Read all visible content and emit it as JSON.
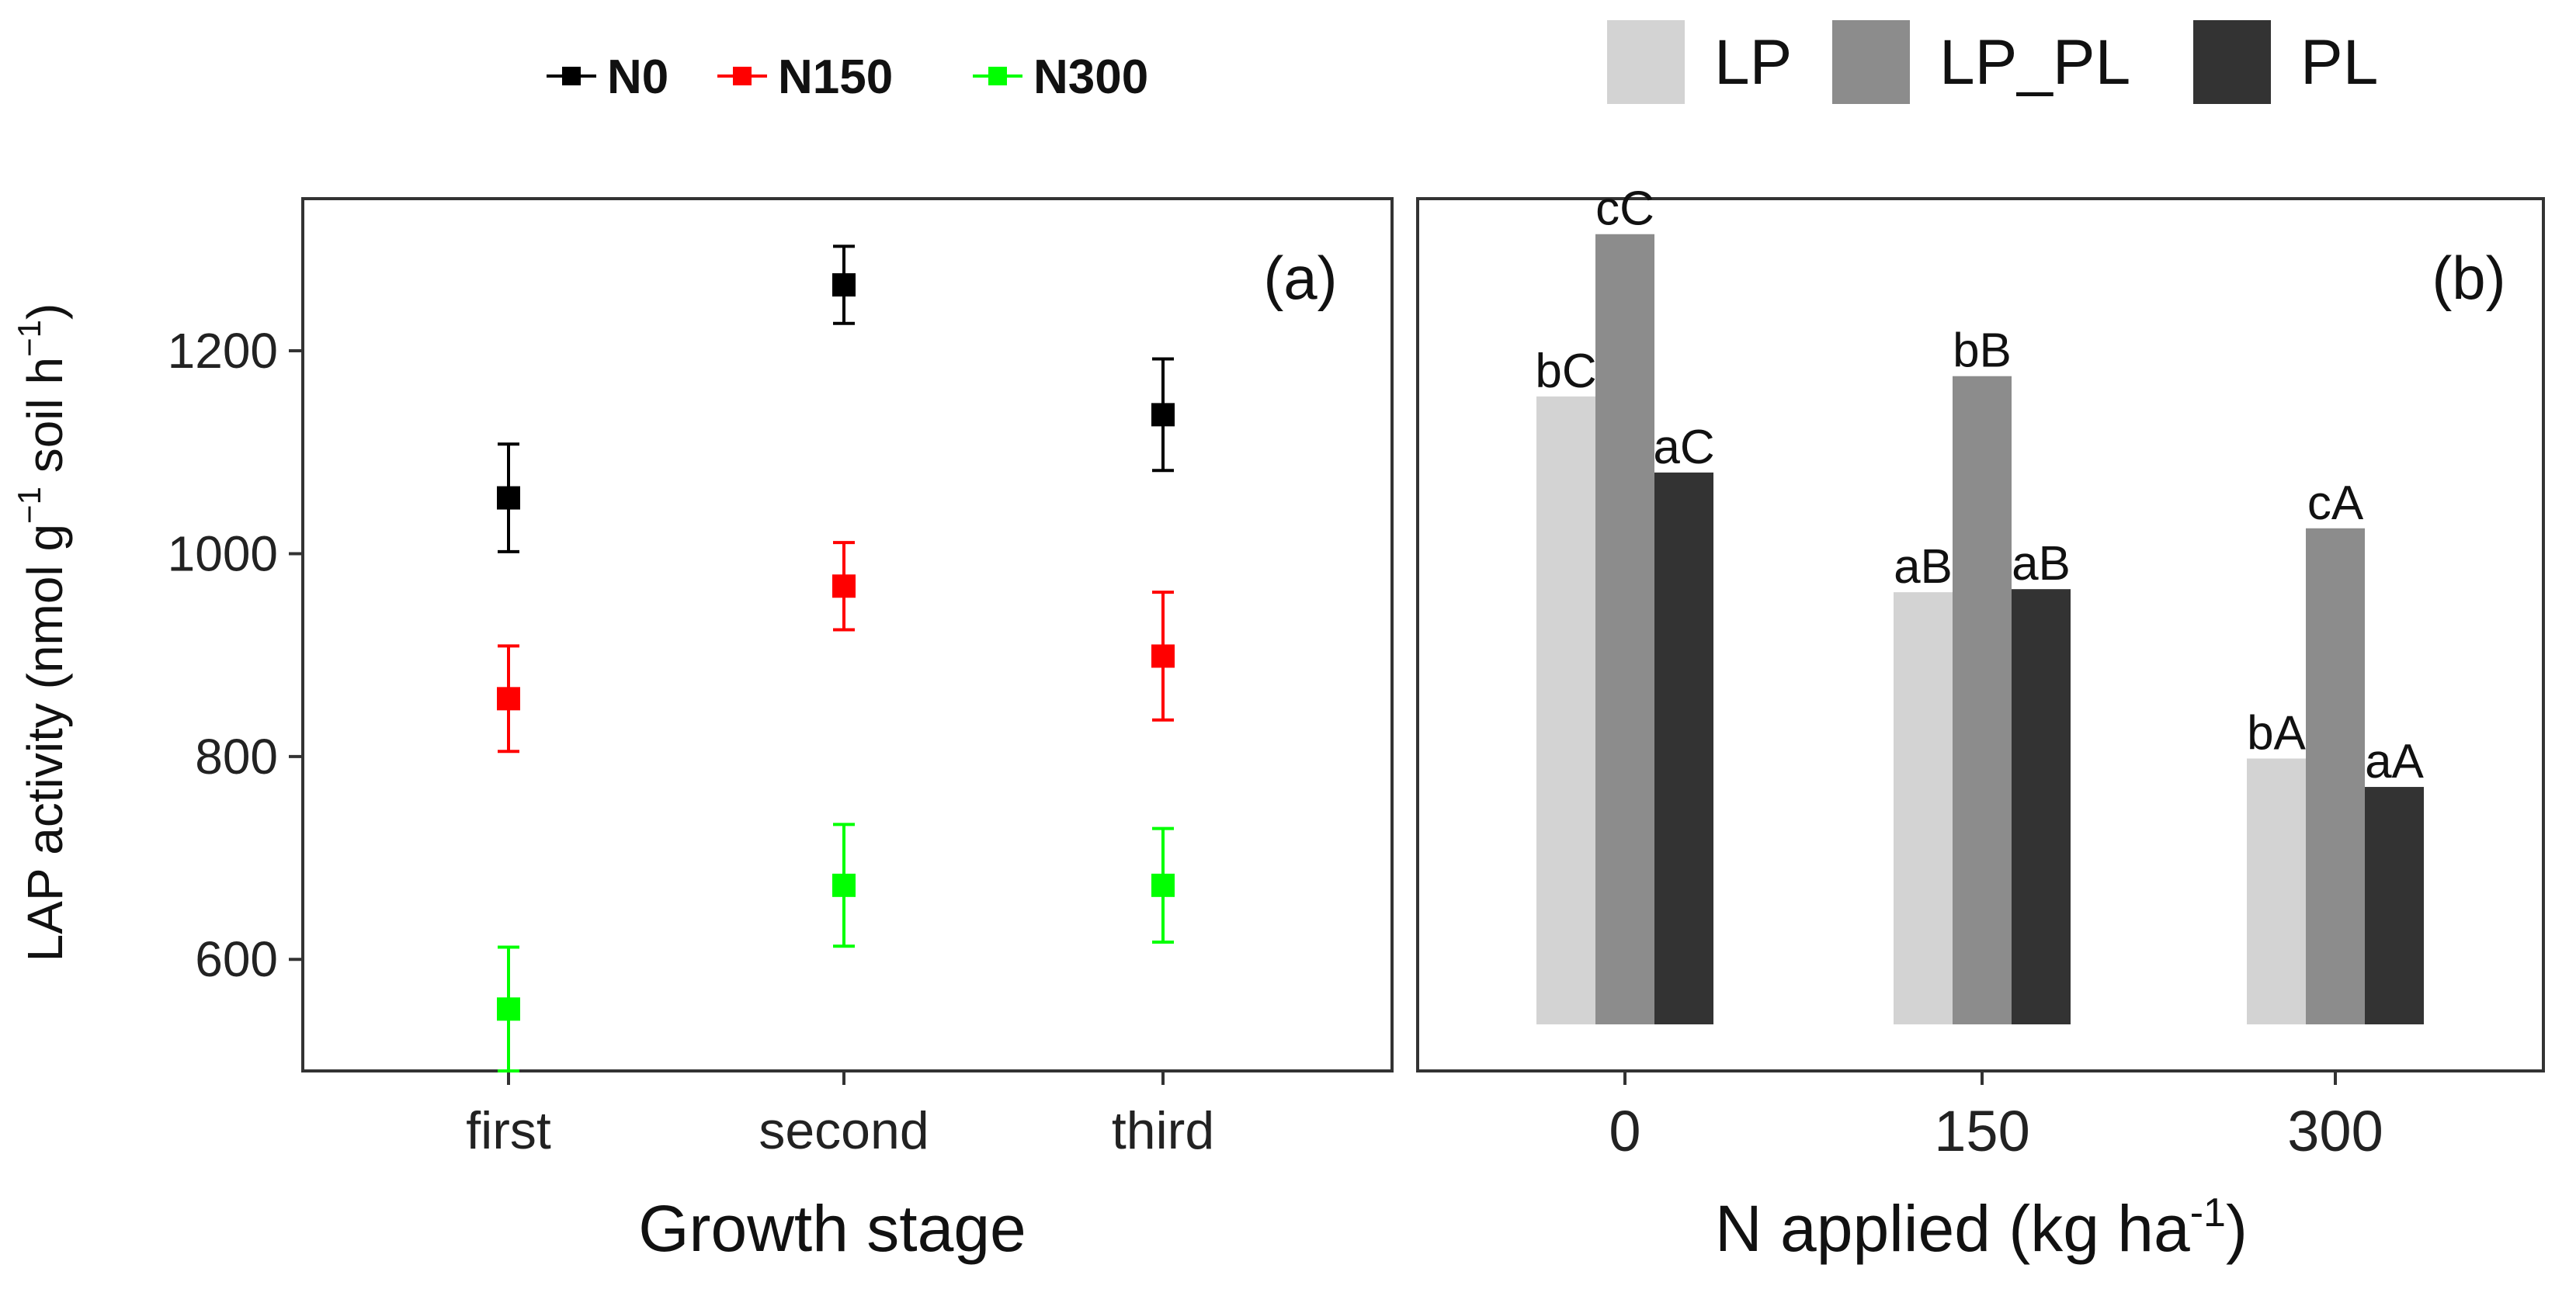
{
  "chart_data": [
    {
      "type": "scatter",
      "panel_label": "(a)",
      "xlabel": "Growth stage",
      "ylabel": "LAP activity (nmol g",
      "ylabel_sup1": "−1",
      "ylabel_mid": " soil h",
      "ylabel_sup2": "−1",
      "ylabel_end": ")",
      "categories": [
        "first",
        "second",
        "third"
      ],
      "ylim": [
        490,
        1350
      ],
      "yticks": [
        600,
        800,
        1000,
        1200
      ],
      "ytick_labels": [
        "600",
        "800",
        "1000",
        "1200"
      ],
      "grid": false,
      "legend_position": "top-left",
      "series": [
        {
          "name": "N0",
          "color": "#000000",
          "values": [
            1055,
            1265,
            1137
          ],
          "errors": [
            53,
            38,
            55
          ]
        },
        {
          "name": "N150",
          "color": "#ff0000",
          "values": [
            857,
            968,
            899
          ],
          "errors": [
            52,
            43,
            63
          ]
        },
        {
          "name": "N300",
          "color": "#00ff00",
          "values": [
            551,
            673,
            673
          ],
          "errors": [
            61,
            60,
            56
          ]
        }
      ]
    },
    {
      "type": "bar",
      "panel_label": "(b)",
      "xlabel": "N applied (kg ha",
      "xlabel_sup": "-1",
      "xlabel_end": ")",
      "categories": [
        "0",
        "150",
        "300"
      ],
      "ylim": [
        490,
        1350
      ],
      "grid": false,
      "legend_position": "top-right",
      "series": [
        {
          "name": "LP",
          "color": "#d3d3d3",
          "values": [
            1155,
            962,
            798
          ],
          "labels": [
            "bC",
            "aB",
            "bA"
          ]
        },
        {
          "name": "LP_PL",
          "color": "#8c8c8c",
          "values": [
            1315,
            1175,
            1025
          ],
          "labels": [
            "cC",
            "bB",
            "cA"
          ]
        },
        {
          "name": "PL",
          "color": "#333333",
          "values": [
            1080,
            965,
            770
          ],
          "labels": [
            "aC",
            "aB",
            "aA"
          ]
        }
      ]
    }
  ]
}
